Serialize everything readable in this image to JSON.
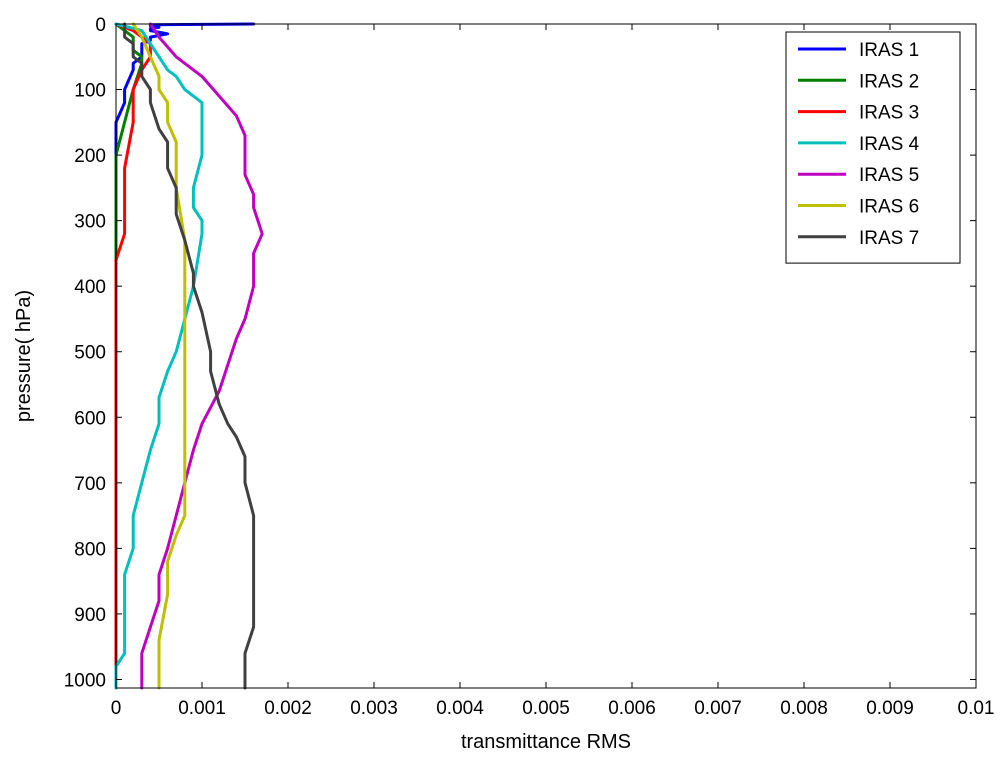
{
  "chart_data": {
    "type": "line",
    "xlabel": "transmittance  RMS",
    "ylabel": "pressure(   hPa)",
    "xlim": [
      0,
      0.01
    ],
    "ylim": [
      1013,
      0
    ],
    "y_reversed": true,
    "grid": false,
    "legend_position": "top-right",
    "x_ticks": [
      0,
      0.001,
      0.002,
      0.003,
      0.004,
      0.005,
      0.006,
      0.007,
      0.008,
      0.009,
      0.01
    ],
    "x_tick_labels": [
      "0",
      "0.001",
      "0.002",
      "0.003",
      "0.004",
      "0.005",
      "0.006",
      "0.007",
      "0.008",
      "0.009",
      "0.01"
    ],
    "y_ticks": [
      0,
      100,
      200,
      300,
      400,
      500,
      600,
      700,
      800,
      900,
      1000
    ],
    "y_tick_labels": [
      "0",
      "100",
      "200",
      "300",
      "400",
      "500",
      "600",
      "700",
      "800",
      "900",
      "1000"
    ],
    "series": [
      {
        "name": "IRAS 1",
        "color": "#0000ff",
        "points": [
          [
            0.0016,
            0
          ],
          [
            0.0004,
            1
          ],
          [
            0.0004,
            3
          ],
          [
            0.0005,
            5
          ],
          [
            0.0004,
            7
          ],
          [
            0.0004,
            10
          ],
          [
            0.0006,
            15
          ],
          [
            0.0004,
            20
          ],
          [
            0.0004,
            25
          ],
          [
            0.0003,
            30
          ],
          [
            0.0003,
            50
          ],
          [
            0.0002,
            60
          ],
          [
            0.0002,
            70
          ],
          [
            0.0001,
            100
          ],
          [
            0.0001,
            120
          ],
          [
            0.0,
            150
          ],
          [
            0.0,
            200
          ],
          [
            0.0,
            300
          ],
          [
            0.0,
            500
          ],
          [
            0.0,
            700
          ],
          [
            0.0,
            900
          ],
          [
            0.0,
            1013
          ]
        ]
      },
      {
        "name": "IRAS 2",
        "color": "#008000",
        "points": [
          [
            0.0,
            0
          ],
          [
            0.0002,
            20
          ],
          [
            0.0002,
            40
          ],
          [
            0.0003,
            50
          ],
          [
            0.0003,
            60
          ],
          [
            0.0002,
            100
          ],
          [
            0.0001,
            150
          ],
          [
            0.0,
            200
          ],
          [
            0.0,
            300
          ],
          [
            0.0,
            500
          ],
          [
            0.0,
            700
          ],
          [
            0.0,
            900
          ],
          [
            0.0,
            1013
          ]
        ]
      },
      {
        "name": "IRAS 3",
        "color": "#ff0000",
        "points": [
          [
            0.0,
            0
          ],
          [
            0.0002,
            10
          ],
          [
            0.0004,
            30
          ],
          [
            0.0004,
            50
          ],
          [
            0.0003,
            70
          ],
          [
            0.0002,
            100
          ],
          [
            0.0002,
            150
          ],
          [
            0.0001,
            220
          ],
          [
            0.0001,
            320
          ],
          [
            0.0,
            360
          ],
          [
            0.0,
            500
          ],
          [
            0.0,
            700
          ],
          [
            0.0,
            900
          ],
          [
            0.0,
            1013
          ]
        ]
      },
      {
        "name": "IRAS 4",
        "color": "#00bfbf",
        "points": [
          [
            0.0,
            0
          ],
          [
            0.0003,
            10
          ],
          [
            0.0004,
            30
          ],
          [
            0.0005,
            50
          ],
          [
            0.0006,
            70
          ],
          [
            0.0007,
            80
          ],
          [
            0.0008,
            100
          ],
          [
            0.0009,
            110
          ],
          [
            0.001,
            120
          ],
          [
            0.001,
            150
          ],
          [
            0.001,
            200
          ],
          [
            0.0009,
            250
          ],
          [
            0.0009,
            280
          ],
          [
            0.001,
            300
          ],
          [
            0.001,
            320
          ],
          [
            0.0009,
            400
          ],
          [
            0.0008,
            450
          ],
          [
            0.0007,
            500
          ],
          [
            0.0006,
            530
          ],
          [
            0.0005,
            570
          ],
          [
            0.0005,
            610
          ],
          [
            0.0004,
            650
          ],
          [
            0.0003,
            700
          ],
          [
            0.0002,
            750
          ],
          [
            0.0002,
            800
          ],
          [
            0.0001,
            840
          ],
          [
            0.0001,
            900
          ],
          [
            0.0001,
            960
          ],
          [
            0.0,
            980
          ],
          [
            0.0,
            1013
          ]
        ]
      },
      {
        "name": "IRAS 5",
        "color": "#bf00bf",
        "points": [
          [
            0.0004,
            0
          ],
          [
            0.0005,
            20
          ],
          [
            0.0007,
            50
          ],
          [
            0.0009,
            70
          ],
          [
            0.001,
            80
          ],
          [
            0.0012,
            110
          ],
          [
            0.0014,
            140
          ],
          [
            0.0015,
            170
          ],
          [
            0.0015,
            200
          ],
          [
            0.0015,
            230
          ],
          [
            0.0016,
            260
          ],
          [
            0.0016,
            280
          ],
          [
            0.0017,
            320
          ],
          [
            0.0016,
            350
          ],
          [
            0.0016,
            400
          ],
          [
            0.0015,
            450
          ],
          [
            0.0014,
            480
          ],
          [
            0.0013,
            520
          ],
          [
            0.0012,
            560
          ],
          [
            0.001,
            610
          ],
          [
            0.0009,
            650
          ],
          [
            0.0008,
            700
          ],
          [
            0.0007,
            750
          ],
          [
            0.0006,
            800
          ],
          [
            0.0005,
            840
          ],
          [
            0.0005,
            880
          ],
          [
            0.0004,
            920
          ],
          [
            0.0003,
            960
          ],
          [
            0.0003,
            1013
          ]
        ]
      },
      {
        "name": "IRAS 6",
        "color": "#bfbf00",
        "points": [
          [
            0.0002,
            0
          ],
          [
            0.0003,
            20
          ],
          [
            0.0004,
            50
          ],
          [
            0.0005,
            80
          ],
          [
            0.0005,
            100
          ],
          [
            0.0006,
            120
          ],
          [
            0.0006,
            150
          ],
          [
            0.0007,
            180
          ],
          [
            0.0007,
            250
          ],
          [
            0.0008,
            330
          ],
          [
            0.0008,
            400
          ],
          [
            0.0008,
            500
          ],
          [
            0.0008,
            600
          ],
          [
            0.0008,
            700
          ],
          [
            0.0008,
            750
          ],
          [
            0.0007,
            780
          ],
          [
            0.0006,
            820
          ],
          [
            0.0006,
            870
          ],
          [
            0.0005,
            940
          ],
          [
            0.0005,
            1013
          ]
        ]
      },
      {
        "name": "IRAS 7",
        "color": "#404040",
        "points": [
          [
            0.0001,
            0
          ],
          [
            0.0001,
            20
          ],
          [
            0.0002,
            30
          ],
          [
            0.0002,
            50
          ],
          [
            0.0003,
            60
          ],
          [
            0.0003,
            80
          ],
          [
            0.0004,
            100
          ],
          [
            0.0004,
            120
          ],
          [
            0.0005,
            160
          ],
          [
            0.0006,
            180
          ],
          [
            0.0006,
            220
          ],
          [
            0.0007,
            250
          ],
          [
            0.0007,
            290
          ],
          [
            0.0008,
            330
          ],
          [
            0.0009,
            380
          ],
          [
            0.0009,
            400
          ],
          [
            0.001,
            440
          ],
          [
            0.0011,
            500
          ],
          [
            0.0011,
            530
          ],
          [
            0.0012,
            580
          ],
          [
            0.0013,
            610
          ],
          [
            0.0014,
            630
          ],
          [
            0.0015,
            660
          ],
          [
            0.0015,
            700
          ],
          [
            0.0016,
            750
          ],
          [
            0.0016,
            800
          ],
          [
            0.0016,
            850
          ],
          [
            0.0016,
            920
          ],
          [
            0.0015,
            960
          ],
          [
            0.0015,
            1013
          ]
        ]
      }
    ]
  }
}
